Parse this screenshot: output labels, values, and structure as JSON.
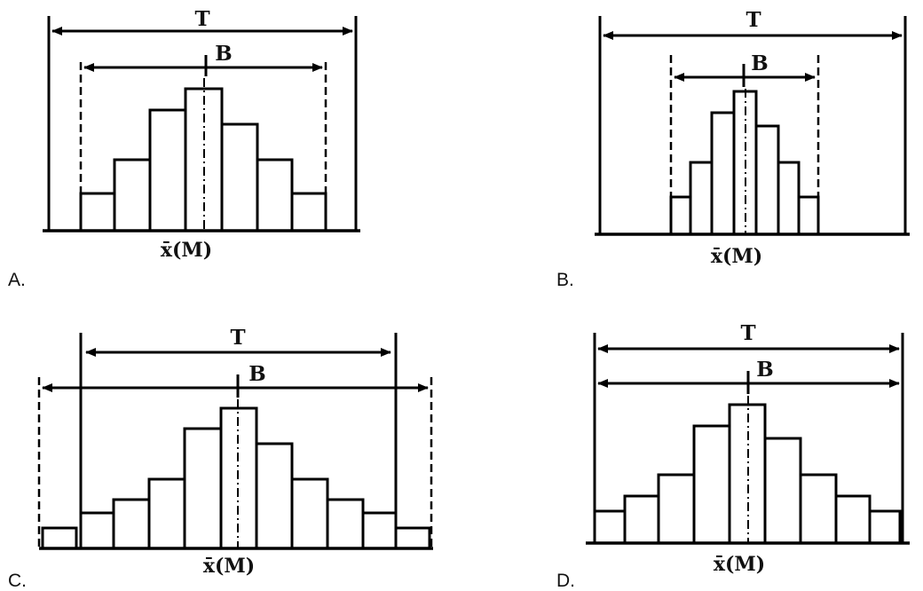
{
  "panels": [
    {
      "option": "A.",
      "tolerance_label": "T",
      "spread_label": "B",
      "mean_label": "x̄(M)",
      "histogram_levels": [
        1,
        2,
        3.6,
        4,
        3,
        2,
        1
      ],
      "center_bar": 3
    },
    {
      "option": "B.",
      "tolerance_label": "T",
      "spread_label": "B",
      "mean_label": "x̄(M)",
      "histogram_levels": [
        1,
        2,
        3.5,
        4,
        3,
        2,
        1
      ],
      "center_bar": 3
    },
    {
      "option": "C.",
      "tolerance_label": "T",
      "spread_label": "B",
      "mean_label": "x̄(M)",
      "histogram_levels": [
        1,
        2,
        2.5,
        3.5,
        5,
        5.5,
        4,
        3,
        2.5,
        2,
        1
      ],
      "center_bar": 5
    },
    {
      "option": "D.",
      "tolerance_label": "T",
      "spread_label": "B",
      "mean_label": "x̄(M)",
      "histogram_levels": [
        1,
        1.5,
        2.2,
        3.5,
        4,
        3.5,
        2.2,
        1.5,
        1
      ],
      "center_bar": 4
    }
  ]
}
